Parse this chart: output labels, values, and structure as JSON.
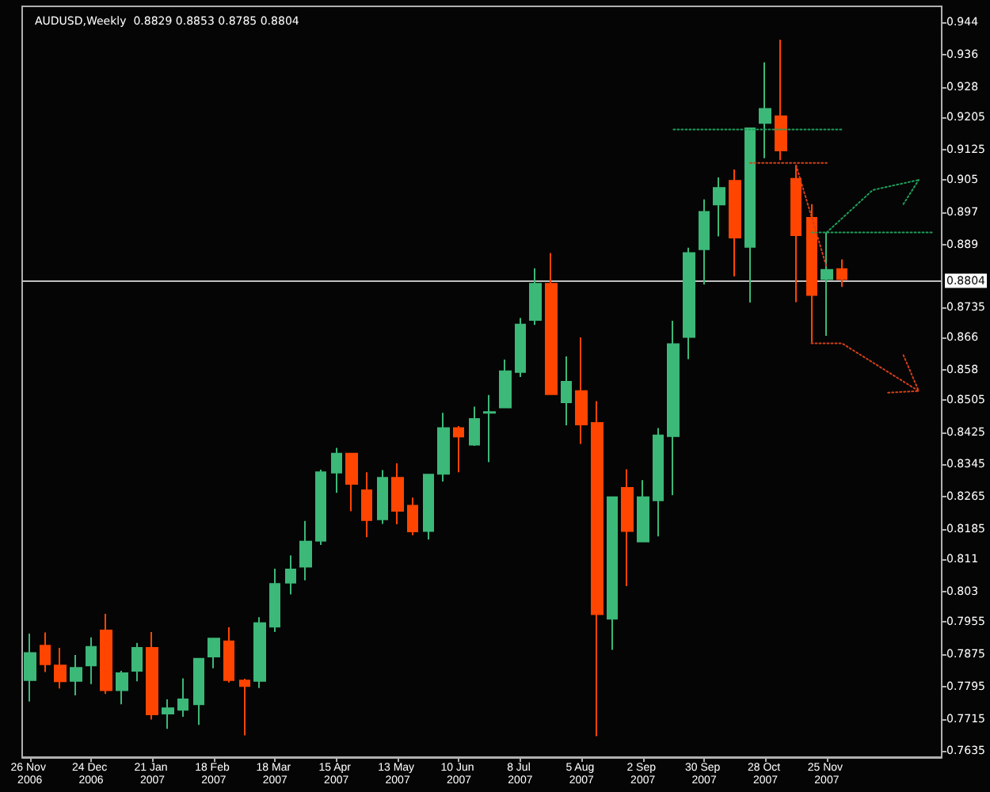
{
  "chart_data": {
    "type": "candlestick",
    "title": "AUDUSD,Weekly  0.8829 0.8853 0.8785 0.8804",
    "categories": [
      "26 Nov 2006",
      null,
      null,
      null,
      "24 Dec 2006",
      null,
      null,
      null,
      "21 Jan 2007",
      null,
      null,
      null,
      "18 Feb 2007",
      null,
      null,
      null,
      "18 Mar 2007",
      null,
      null,
      null,
      "15 Apr 2007",
      null,
      null,
      null,
      "13 May 2007",
      null,
      null,
      null,
      "10 Jun 2007",
      null,
      null,
      null,
      "8 Jul 2007",
      null,
      null,
      null,
      "5 Aug 2007",
      null,
      null,
      null,
      "2 Sep 2007",
      null,
      null,
      null,
      "30 Sep 2007",
      null,
      null,
      null,
      "28 Oct 2007",
      null,
      null,
      null,
      "25 Nov 2007",
      null,
      null,
      null,
      null,
      null,
      null,
      null
    ],
    "ohlc": [
      [
        0.7811,
        0.7926,
        0.7758,
        0.7878
      ],
      [
        0.7896,
        0.7929,
        0.7831,
        0.785
      ],
      [
        0.7847,
        0.7891,
        0.779,
        0.7808
      ],
      [
        0.7809,
        0.7873,
        0.7773,
        0.7841
      ],
      [
        0.7847,
        0.7917,
        0.7801,
        0.7893
      ],
      [
        0.7934,
        0.7975,
        0.7777,
        0.7786
      ],
      [
        0.7786,
        0.7834,
        0.7751,
        0.7828
      ],
      [
        0.7834,
        0.7903,
        0.7808,
        0.7891
      ],
      [
        0.7891,
        0.793,
        0.7713,
        0.7726
      ],
      [
        0.7728,
        0.7763,
        0.769,
        0.7741
      ],
      [
        0.7737,
        0.7815,
        0.772,
        0.7763
      ],
      [
        0.7751,
        0.7864,
        0.77,
        0.7864
      ],
      [
        0.7869,
        0.7916,
        0.784,
        0.7914
      ],
      [
        0.7907,
        0.7942,
        0.7805,
        0.7811
      ],
      [
        0.781,
        0.7814,
        0.7674,
        0.7796
      ],
      [
        0.7809,
        0.7967,
        0.7791,
        0.7952
      ],
      [
        0.7943,
        0.8087,
        0.793,
        0.8049
      ],
      [
        0.8052,
        0.812,
        0.8023,
        0.8085
      ],
      [
        0.8092,
        0.8205,
        0.8058,
        0.8154
      ],
      [
        0.8156,
        0.8332,
        0.8146,
        0.8326
      ],
      [
        0.8325,
        0.8386,
        0.8275,
        0.8372
      ],
      [
        0.8372,
        0.8372,
        0.8229,
        0.8297
      ],
      [
        0.8281,
        0.8326,
        0.8165,
        0.8207
      ],
      [
        0.8209,
        0.8331,
        0.8198,
        0.8312
      ],
      [
        0.8312,
        0.8348,
        0.8197,
        0.823
      ],
      [
        0.8243,
        0.8263,
        0.817,
        0.8179
      ],
      [
        0.818,
        0.8322,
        0.8159,
        0.832
      ],
      [
        0.8322,
        0.8473,
        0.8303,
        0.8435
      ],
      [
        0.8435,
        0.844,
        0.8326,
        0.8414
      ],
      [
        0.8394,
        0.8488,
        0.8391,
        0.8458
      ],
      [
        0.8473,
        0.8517,
        0.8351,
        0.8475
      ],
      [
        0.8486,
        0.8605,
        0.8486,
        0.8576
      ],
      [
        0.8574,
        0.8708,
        0.8562,
        0.8692
      ],
      [
        0.8703,
        0.8831,
        0.8691,
        0.8793
      ],
      [
        0.8793,
        0.8869,
        0.8519,
        0.8519
      ],
      [
        0.8499,
        0.8613,
        0.8442,
        0.855
      ],
      [
        0.8527,
        0.866,
        0.8396,
        0.8444
      ],
      [
        0.8448,
        0.8502,
        0.7672,
        0.7974
      ],
      [
        0.7963,
        0.8264,
        0.7886,
        0.8264
      ],
      [
        0.8287,
        0.8333,
        0.8044,
        0.818
      ],
      [
        0.8154,
        0.8306,
        0.8154,
        0.8264
      ],
      [
        0.8256,
        0.8435,
        0.8167,
        0.8417
      ],
      [
        0.8415,
        0.8701,
        0.8269,
        0.8643
      ],
      [
        0.8661,
        0.8882,
        0.8606,
        0.8869
      ],
      [
        0.8878,
        0.9002,
        0.8791,
        0.8971
      ],
      [
        0.8989,
        0.9056,
        0.891,
        0.903
      ],
      [
        0.9048,
        0.9076,
        0.8811,
        0.8907
      ],
      [
        0.8884,
        0.9178,
        0.8746,
        0.9178
      ],
      [
        0.9191,
        0.9341,
        0.9104,
        0.9226
      ],
      [
        0.9208,
        0.9397,
        0.9099,
        0.9123
      ],
      [
        0.9053,
        0.9086,
        0.8747,
        0.8913
      ],
      [
        0.8956,
        0.899,
        0.8647,
        0.8765
      ],
      [
        0.8804,
        0.892,
        0.8664,
        0.8827
      ],
      [
        0.8829,
        0.8853,
        0.8785,
        0.8804
      ],
      null,
      null,
      null,
      null,
      null,
      null
    ],
    "series": [
      {
        "type": "line",
        "color": "#1f9e5a",
        "line_style": "dotted",
        "values": [
          null,
          null,
          null,
          null,
          null,
          null,
          null,
          null,
          null,
          null,
          null,
          null,
          null,
          null,
          null,
          null,
          null,
          null,
          null,
          null,
          null,
          null,
          null,
          null,
          null,
          null,
          null,
          null,
          null,
          null,
          null,
          null,
          null,
          null,
          null,
          null,
          null,
          null,
          null,
          null,
          null,
          null,
          0.9175,
          null,
          null,
          null,
          null,
          null,
          null,
          null,
          null,
          null,
          null,
          0.9175,
          null,
          null,
          null,
          null,
          null,
          null
        ]
      },
      {
        "type": "line",
        "color": "#d2401a",
        "line_style": "dotted",
        "values": [
          null,
          null,
          null,
          null,
          null,
          null,
          null,
          null,
          null,
          null,
          null,
          null,
          null,
          null,
          null,
          null,
          null,
          null,
          null,
          null,
          null,
          null,
          null,
          null,
          null,
          null,
          null,
          null,
          null,
          null,
          null,
          null,
          null,
          null,
          null,
          null,
          null,
          null,
          null,
          null,
          null,
          null,
          null,
          null,
          null,
          null,
          null,
          0.9092,
          null,
          null,
          null,
          null,
          0.9092,
          null,
          null,
          null,
          null,
          null,
          null,
          null
        ]
      },
      {
        "type": "line",
        "color": "#1f9e5a",
        "line_style": "dotted",
        "values": [
          null,
          null,
          null,
          null,
          null,
          null,
          null,
          null,
          null,
          null,
          null,
          null,
          null,
          null,
          null,
          null,
          null,
          null,
          null,
          null,
          null,
          null,
          null,
          null,
          null,
          null,
          null,
          null,
          null,
          null,
          null,
          null,
          null,
          null,
          null,
          null,
          null,
          null,
          null,
          null,
          null,
          null,
          null,
          null,
          null,
          null,
          null,
          null,
          null,
          null,
          null,
          0.892,
          null,
          null,
          null,
          null,
          null,
          null,
          null,
          0.892
        ]
      },
      {
        "type": "line",
        "color": "#1f9e5a",
        "line_style": "dotted",
        "values": [
          null,
          null,
          null,
          null,
          null,
          null,
          null,
          null,
          null,
          null,
          null,
          null,
          null,
          null,
          null,
          null,
          null,
          null,
          null,
          null,
          null,
          null,
          null,
          null,
          null,
          null,
          null,
          null,
          null,
          null,
          null,
          null,
          null,
          null,
          null,
          null,
          null,
          null,
          null,
          null,
          null,
          null,
          null,
          null,
          null,
          null,
          null,
          null,
          null,
          null,
          null,
          null,
          0.892,
          null,
          null,
          0.9025,
          null,
          null,
          0.905,
          null
        ]
      },
      {
        "type": "line",
        "color": "#1f9e5a",
        "line_style": "dotted",
        "values": [
          null,
          null,
          null,
          null,
          null,
          null,
          null,
          null,
          null,
          null,
          null,
          null,
          null,
          null,
          null,
          null,
          null,
          null,
          null,
          null,
          null,
          null,
          null,
          null,
          null,
          null,
          null,
          null,
          null,
          null,
          null,
          null,
          null,
          null,
          null,
          null,
          null,
          null,
          null,
          null,
          null,
          null,
          null,
          null,
          null,
          null,
          null,
          null,
          null,
          null,
          null,
          null,
          null,
          null,
          null,
          null,
          null,
          0.899,
          0.905,
          null
        ]
      },
      {
        "type": "line",
        "color": "#d2401a",
        "line_style": "dotted",
        "values": [
          null,
          null,
          null,
          null,
          null,
          null,
          null,
          null,
          null,
          null,
          null,
          null,
          null,
          null,
          null,
          null,
          null,
          null,
          null,
          null,
          null,
          null,
          null,
          null,
          null,
          null,
          null,
          null,
          null,
          null,
          null,
          null,
          null,
          null,
          null,
          null,
          null,
          null,
          null,
          null,
          null,
          null,
          null,
          null,
          null,
          null,
          null,
          null,
          null,
          null,
          0.9086,
          null,
          0.8833,
          null,
          null,
          null,
          null,
          null,
          null,
          null
        ]
      },
      {
        "type": "line",
        "color": "#d2401a",
        "line_style": "dotted",
        "values": [
          null,
          null,
          null,
          null,
          null,
          null,
          null,
          null,
          null,
          null,
          null,
          null,
          null,
          null,
          null,
          null,
          null,
          null,
          null,
          null,
          null,
          null,
          null,
          null,
          null,
          null,
          null,
          null,
          null,
          null,
          null,
          null,
          null,
          null,
          null,
          null,
          null,
          null,
          null,
          null,
          null,
          null,
          null,
          null,
          null,
          null,
          null,
          null,
          null,
          null,
          null,
          0.8645,
          null,
          0.8645,
          null,
          null,
          null,
          null,
          0.8527,
          null
        ]
      },
      {
        "type": "line",
        "color": "#d2401a",
        "line_style": "dotted",
        "values": [
          null,
          null,
          null,
          null,
          null,
          null,
          null,
          null,
          null,
          null,
          null,
          null,
          null,
          null,
          null,
          null,
          null,
          null,
          null,
          null,
          null,
          null,
          null,
          null,
          null,
          null,
          null,
          null,
          null,
          null,
          null,
          null,
          null,
          null,
          null,
          null,
          null,
          null,
          null,
          null,
          null,
          null,
          null,
          null,
          null,
          null,
          null,
          null,
          null,
          null,
          null,
          null,
          null,
          null,
          null,
          null,
          0.8523,
          null,
          0.8527,
          null
        ]
      },
      {
        "type": "line",
        "color": "#d2401a",
        "line_style": "dotted",
        "values": [
          null,
          null,
          null,
          null,
          null,
          null,
          null,
          null,
          null,
          null,
          null,
          null,
          null,
          null,
          null,
          null,
          null,
          null,
          null,
          null,
          null,
          null,
          null,
          null,
          null,
          null,
          null,
          null,
          null,
          null,
          null,
          null,
          null,
          null,
          null,
          null,
          null,
          null,
          null,
          null,
          null,
          null,
          null,
          null,
          null,
          null,
          null,
          null,
          null,
          null,
          null,
          null,
          null,
          null,
          null,
          null,
          null,
          0.8616,
          0.8527,
          null
        ]
      }
    ],
    "ylim": [
      0.762,
      0.948
    ],
    "yticks": [
      0.944,
      0.936,
      0.928,
      0.9205,
      0.9125,
      0.905,
      0.897,
      0.889,
      0.8735,
      0.866,
      0.858,
      0.8505,
      0.8425,
      0.8345,
      0.8265,
      0.8185,
      0.811,
      0.803,
      0.7955,
      0.7875,
      0.7795,
      0.7715,
      0.7635
    ],
    "ref_lines": [
      {
        "axis": "y",
        "value": 0.8804,
        "label": "0.8804",
        "color": "#c0c0c0",
        "line_style": "solid"
      }
    ],
    "marker": "none"
  }
}
